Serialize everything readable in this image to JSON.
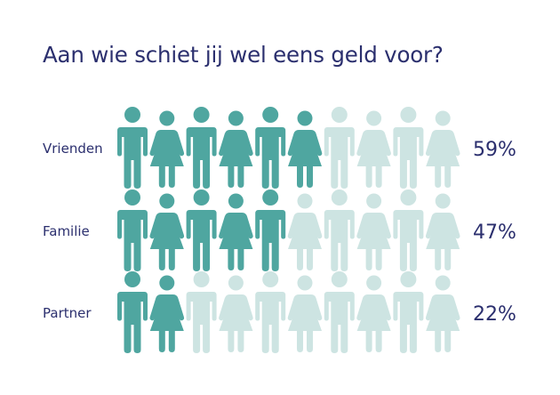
{
  "title": "Aan wie schiet jij wel eens geld voor?",
  "colors": {
    "filled": "#4fa6a0",
    "empty": "#cde4e2",
    "text": "#2b2f6e"
  },
  "icon_pattern": [
    "man-icon",
    "woman-icon"
  ],
  "chart_data": {
    "type": "bar",
    "title": "Aan wie schiet jij wel eens geld voor?",
    "categories": [
      "Vrienden",
      "Familie",
      "Partner"
    ],
    "values": [
      59,
      47,
      22
    ],
    "value_labels": [
      "59%",
      "47%",
      "22%"
    ],
    "filled_icons": [
      6,
      5,
      2
    ],
    "icons_per_row": 10,
    "unit": "%",
    "ylim": [
      0,
      100
    ],
    "grid": false,
    "legend": "none"
  }
}
